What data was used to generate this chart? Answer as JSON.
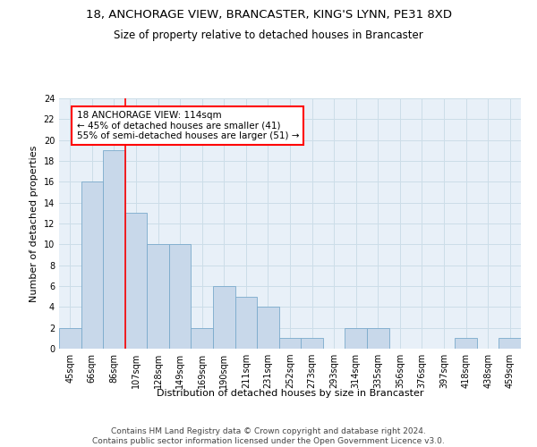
{
  "title1": "18, ANCHORAGE VIEW, BRANCASTER, KING'S LYNN, PE31 8XD",
  "title2": "Size of property relative to detached houses in Brancaster",
  "xlabel": "Distribution of detached houses by size in Brancaster",
  "ylabel": "Number of detached properties",
  "footer1": "Contains HM Land Registry data © Crown copyright and database right 2024.",
  "footer2": "Contains public sector information licensed under the Open Government Licence v3.0.",
  "bins": [
    "45sqm",
    "66sqm",
    "86sqm",
    "107sqm",
    "128sqm",
    "149sqm",
    "169sqm",
    "190sqm",
    "211sqm",
    "231sqm",
    "252sqm",
    "273sqm",
    "293sqm",
    "314sqm",
    "335sqm",
    "356sqm",
    "376sqm",
    "397sqm",
    "418sqm",
    "438sqm",
    "459sqm"
  ],
  "counts": [
    2,
    16,
    19,
    13,
    10,
    10,
    2,
    6,
    5,
    4,
    1,
    1,
    0,
    2,
    2,
    0,
    0,
    0,
    1,
    0,
    1
  ],
  "bar_color": "#c8d8ea",
  "bar_edge_color": "#7aaacc",
  "red_line_bin_index": 3,
  "annotation_line1": "18 ANCHORAGE VIEW: 114sqm",
  "annotation_line2": "← 45% of detached houses are smaller (41)",
  "annotation_line3": "55% of semi-detached houses are larger (51) →",
  "annotation_box_color": "white",
  "annotation_box_edgecolor": "red",
  "ylim": [
    0,
    24
  ],
  "yticks": [
    0,
    2,
    4,
    6,
    8,
    10,
    12,
    14,
    16,
    18,
    20,
    22,
    24
  ],
  "grid_color": "#ccdde8",
  "bg_color": "#e8f0f8",
  "title1_fontsize": 9.5,
  "title2_fontsize": 8.5,
  "xlabel_fontsize": 8,
  "ylabel_fontsize": 8,
  "tick_fontsize": 7,
  "footer_fontsize": 6.5,
  "annotation_fontsize": 7.5
}
